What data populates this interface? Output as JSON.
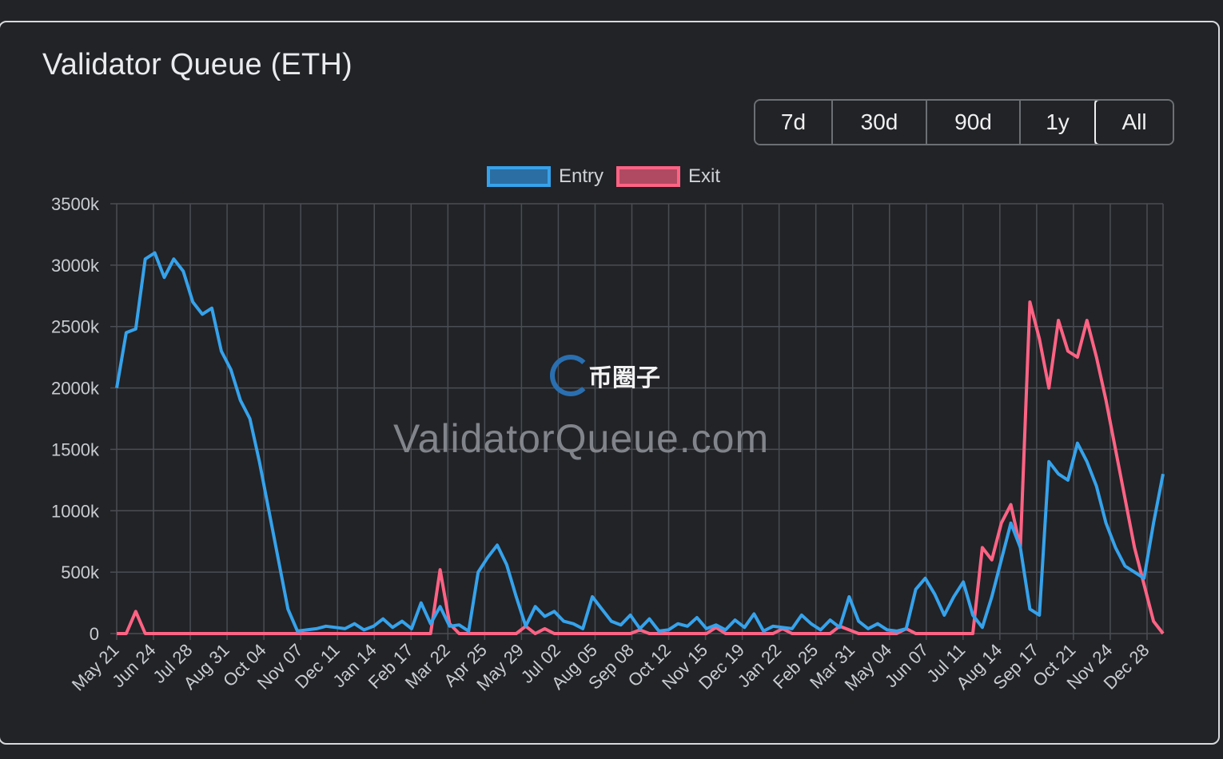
{
  "title": "Validator Queue (ETH)",
  "range_buttons": [
    {
      "label": "7d",
      "active": false
    },
    {
      "label": "30d",
      "active": false
    },
    {
      "label": "90d",
      "active": false
    },
    {
      "label": "1y",
      "active": false
    },
    {
      "label": "All",
      "active": true
    }
  ],
  "watermark": {
    "site": "ValidatorQueue.com",
    "logo_text": "币圈子"
  },
  "colors": {
    "entry": "#36a2eb",
    "exit": "#ff6384",
    "grid": "#4a4d53",
    "axis_text": "#c9ccd1"
  },
  "chart_data": {
    "type": "line",
    "title": "",
    "xlabel": "",
    "ylabel": "",
    "ylim": [
      0,
      3500
    ],
    "y_ticks": [
      "0",
      "500k",
      "1000k",
      "1500k",
      "2000k",
      "2500k",
      "3000k",
      "3500k"
    ],
    "x_tick_labels": [
      "May 21",
      "Jun 24",
      "Jul 28",
      "Aug 31",
      "Oct 04",
      "Nov 07",
      "Dec 11",
      "Jan 14",
      "Feb 17",
      "Mar 22",
      "Apr 25",
      "May 29",
      "Jul 02",
      "Aug 05",
      "Sep 08",
      "Oct 12",
      "Nov 15",
      "Dec 19",
      "Jan 22",
      "Feb 25",
      "Mar 31",
      "May 04",
      "Jun 07",
      "Jul 11",
      "Aug 14",
      "Sep 17",
      "Oct 21",
      "Nov 24",
      "Dec 28"
    ],
    "legend_position": "top",
    "grid": true,
    "series": [
      {
        "name": "Entry",
        "values": [
          2000,
          2450,
          2480,
          3050,
          3100,
          2900,
          3050,
          2950,
          2700,
          2600,
          2650,
          2300,
          2150,
          1900,
          1750,
          1400,
          1000,
          600,
          200,
          20,
          30,
          40,
          60,
          50,
          40,
          80,
          30,
          60,
          120,
          50,
          100,
          40,
          250,
          80,
          220,
          60,
          70,
          20,
          500,
          620,
          720,
          560,
          300,
          60,
          220,
          140,
          180,
          100,
          80,
          40,
          300,
          200,
          100,
          70,
          150,
          40,
          120,
          20,
          30,
          80,
          60,
          130,
          40,
          70,
          30,
          110,
          50,
          160,
          20,
          60,
          50,
          40,
          150,
          80,
          30,
          110,
          50,
          300,
          100,
          40,
          80,
          30,
          20,
          40,
          360,
          450,
          320,
          150,
          300,
          420,
          150,
          50,
          300,
          600,
          900,
          700,
          200,
          150,
          1400,
          1300,
          1250,
          1550,
          1400,
          1200,
          900,
          700,
          550,
          500,
          450,
          900,
          1300
        ],
        "color": "#36a2eb"
      },
      {
        "name": "Exit",
        "values": [
          0,
          0,
          180,
          0,
          0,
          0,
          0,
          0,
          0,
          0,
          0,
          0,
          0,
          0,
          0,
          0,
          0,
          0,
          0,
          0,
          0,
          0,
          0,
          0,
          0,
          0,
          0,
          0,
          0,
          0,
          0,
          0,
          0,
          0,
          520,
          80,
          0,
          0,
          0,
          0,
          0,
          0,
          0,
          60,
          0,
          40,
          0,
          0,
          0,
          0,
          0,
          0,
          0,
          0,
          0,
          30,
          0,
          0,
          0,
          0,
          0,
          0,
          0,
          50,
          0,
          0,
          0,
          0,
          0,
          0,
          40,
          0,
          0,
          0,
          0,
          0,
          60,
          30,
          0,
          0,
          0,
          0,
          0,
          40,
          0,
          0,
          0,
          0,
          0,
          0,
          0,
          700,
          600,
          900,
          1050,
          700,
          2700,
          2400,
          2000,
          2550,
          2300,
          2250,
          2550,
          2250,
          1900,
          1500,
          1100,
          700,
          400,
          100,
          0
        ],
        "color": "#ff6384"
      }
    ]
  }
}
